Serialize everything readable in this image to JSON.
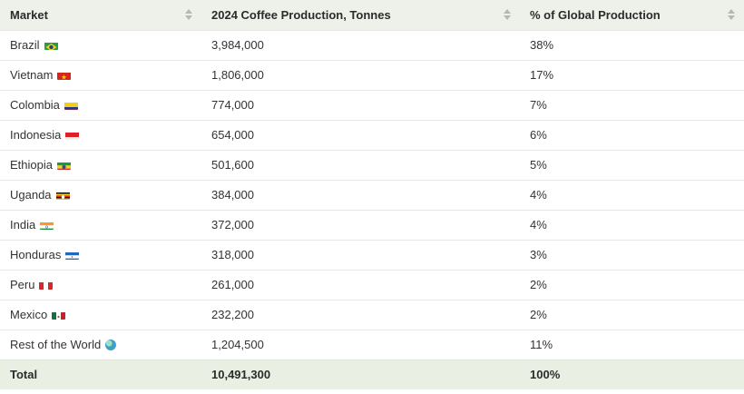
{
  "table": {
    "headers": [
      "Market",
      "2024 Coffee Production, Tonnes",
      "% of Global Production"
    ],
    "rows": [
      {
        "market": "Brazil",
        "flag_icon": "brazil-flag-icon",
        "tonnes": "3,984,000",
        "share": "38%"
      },
      {
        "market": "Vietnam",
        "flag_icon": "vietnam-flag-icon",
        "tonnes": "1,806,000",
        "share": "17%"
      },
      {
        "market": "Colombia",
        "flag_icon": "colombia-flag-icon",
        "tonnes": "774,000",
        "share": "7%"
      },
      {
        "market": "Indonesia",
        "flag_icon": "indonesia-flag-icon",
        "tonnes": "654,000",
        "share": "6%"
      },
      {
        "market": "Ethiopia",
        "flag_icon": "ethiopia-flag-icon",
        "tonnes": "501,600",
        "share": "5%"
      },
      {
        "market": "Uganda",
        "flag_icon": "uganda-flag-icon",
        "tonnes": "384,000",
        "share": "4%"
      },
      {
        "market": "India",
        "flag_icon": "india-flag-icon",
        "tonnes": "372,000",
        "share": "4%"
      },
      {
        "market": "Honduras",
        "flag_icon": "honduras-flag-icon",
        "tonnes": "318,000",
        "share": "3%"
      },
      {
        "market": "Peru",
        "flag_icon": "peru-flag-icon",
        "tonnes": "261,000",
        "share": "2%"
      },
      {
        "market": "Mexico",
        "flag_icon": "mexico-flag-icon",
        "tonnes": "232,200",
        "share": "2%"
      },
      {
        "market": "Rest of the World",
        "flag_icon": "globe-icon",
        "tonnes": "1,204,500",
        "share": "11%"
      }
    ],
    "total": {
      "label": "Total",
      "tonnes": "10,491,300",
      "share": "100%"
    }
  },
  "colors": {
    "header_bg": "#eef1ea",
    "total_bg": "#e9efe2",
    "divider": "#e6e6e6"
  }
}
